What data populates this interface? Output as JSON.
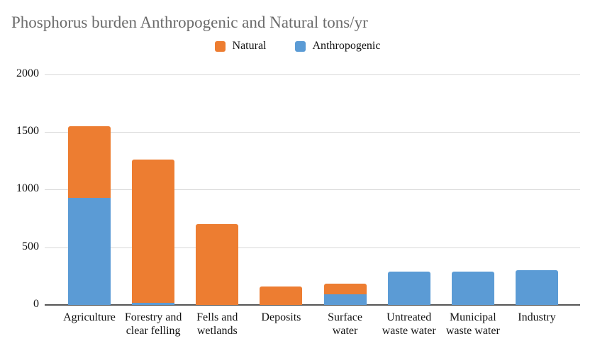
{
  "title": "Phosphorus burden Anthropogenic and Natural tons/yr",
  "legend": {
    "items": [
      {
        "label": "Natural",
        "color": "#ED7D31"
      },
      {
        "label": "Anthropogenic",
        "color": "#5B9BD5"
      }
    ]
  },
  "chart_data": {
    "type": "bar",
    "stacked": true,
    "title": "Phosphorus burden Anthropogenic and Natural tons/yr",
    "unit": "tons/yr",
    "categories": [
      "Agriculture",
      "Forestry and clear felling",
      "Fells and wetlands",
      "Deposits",
      "Surface water",
      "Untreated waste water",
      "Municipal waste water",
      "Industry"
    ],
    "series": [
      {
        "name": "Anthropogenic",
        "color": "#5B9BD5",
        "values": [
          930,
          20,
          0,
          0,
          95,
          290,
          290,
          300
        ]
      },
      {
        "name": "Natural",
        "color": "#ED7D31",
        "values": [
          620,
          1240,
          700,
          160,
          90,
          0,
          0,
          0
        ]
      }
    ],
    "totals": [
      1550,
      1260,
      700,
      160,
      185,
      290,
      290,
      300
    ],
    "xlabel": "",
    "ylabel": "",
    "ylim": [
      0,
      2000
    ],
    "yticks": [
      0,
      500,
      1000,
      1500,
      2000
    ],
    "grid": true,
    "legend_position": "top-center"
  },
  "colors": {
    "title_text": "#6B6B6B",
    "axis_text": "#111111",
    "gridline": "#D9D9D9",
    "axis_line": "#555555",
    "background": "#FFFFFF",
    "natural": "#ED7D31",
    "anthropogenic": "#5B9BD5"
  }
}
